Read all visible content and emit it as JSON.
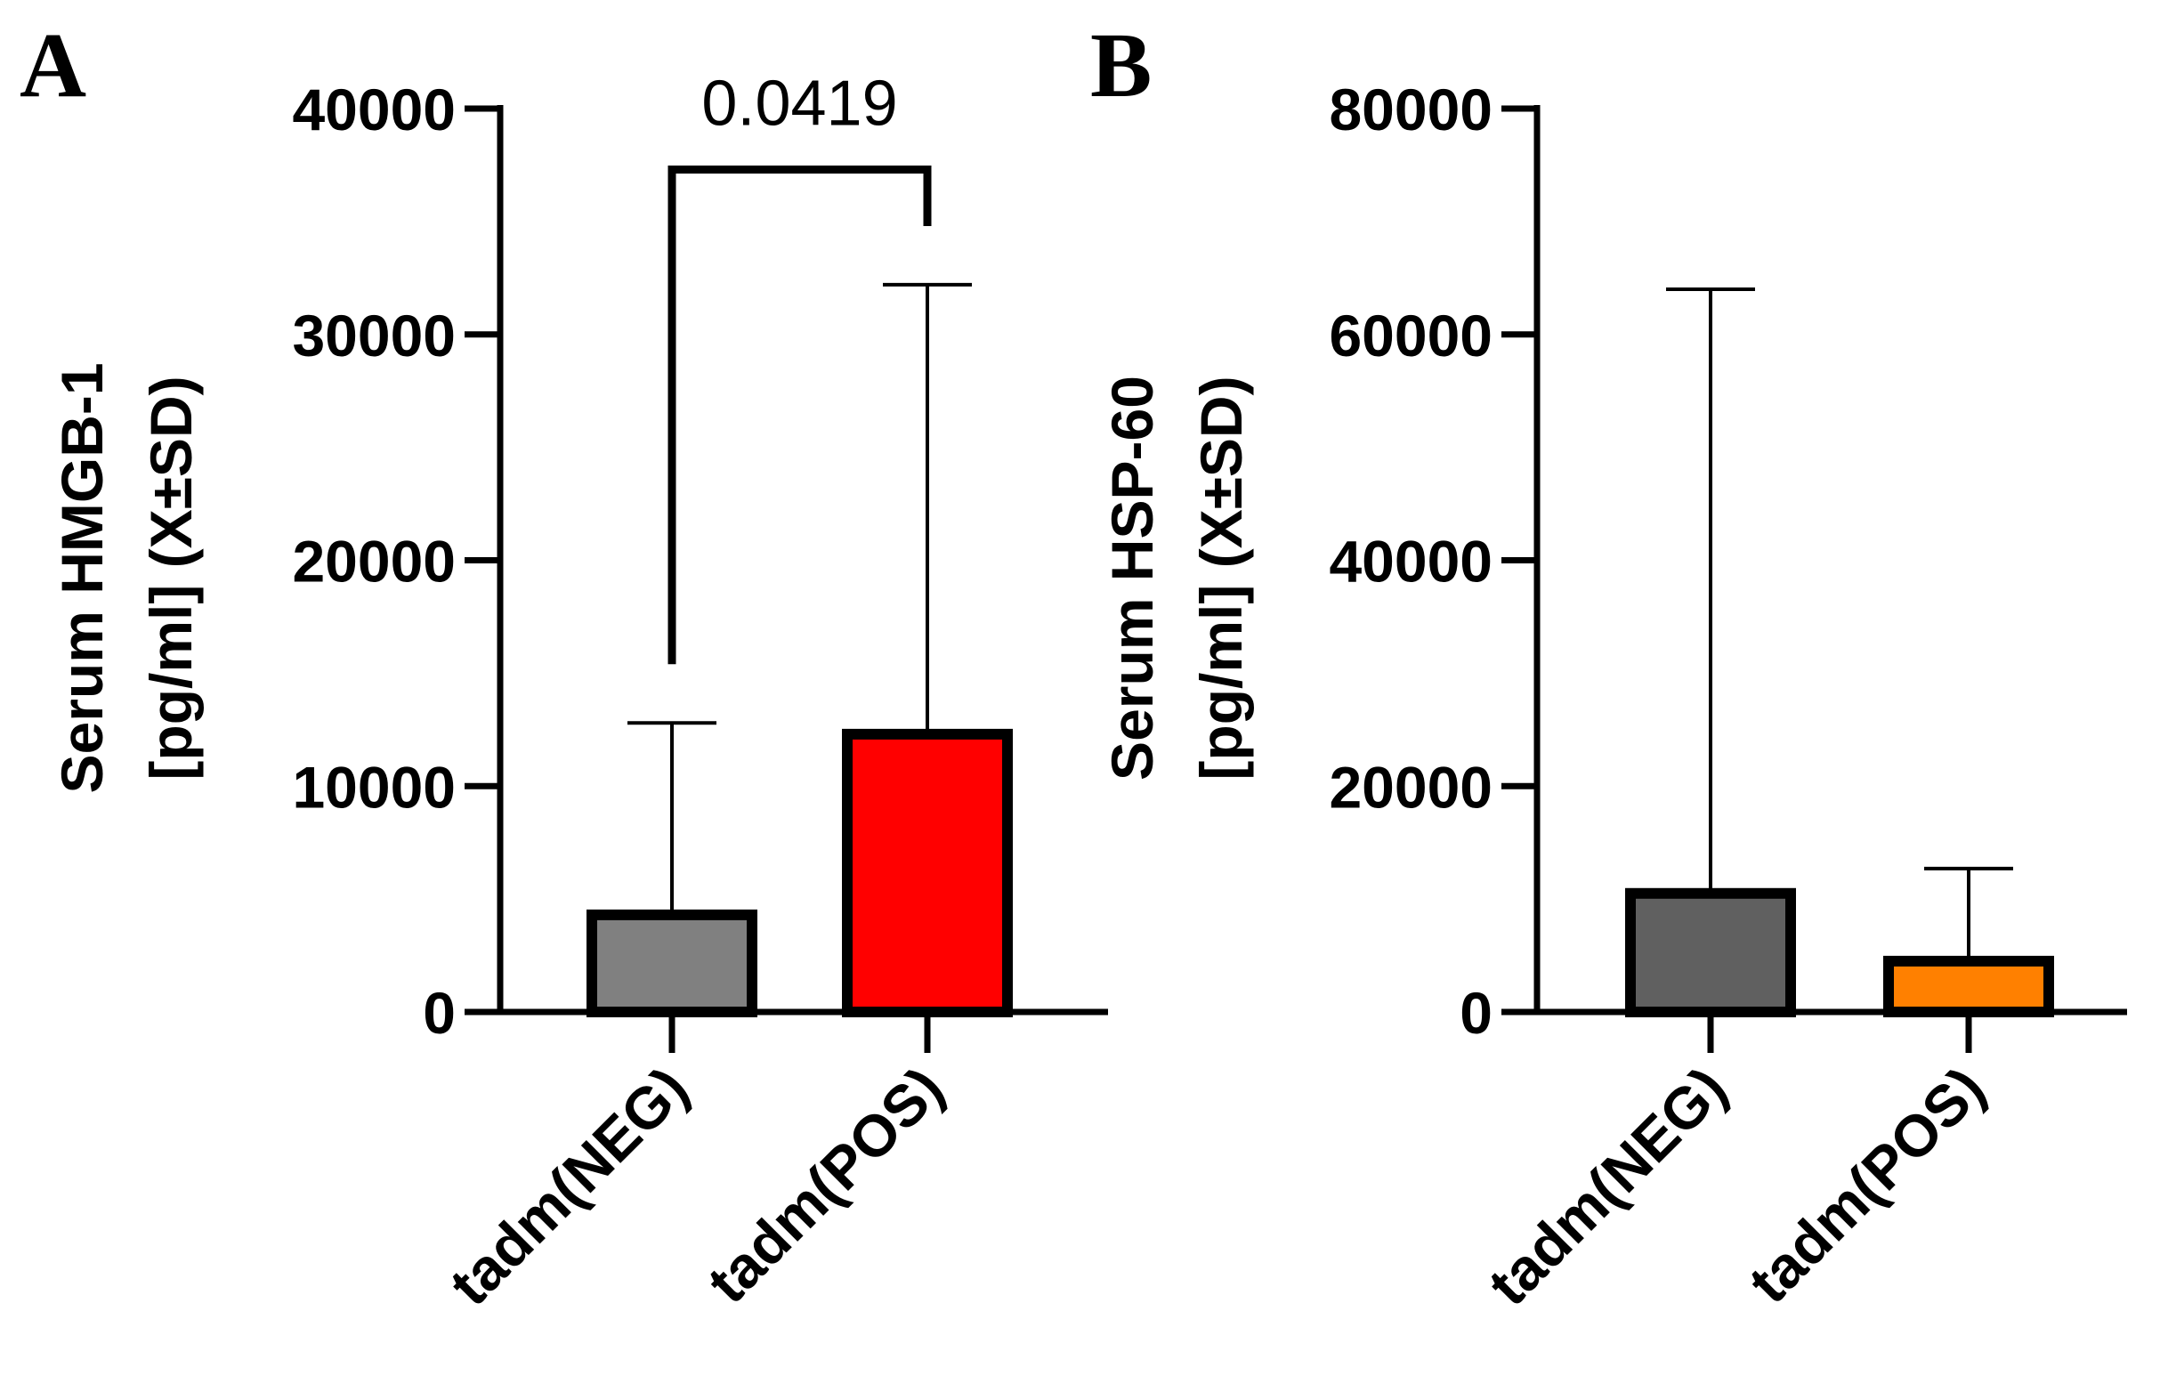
{
  "chart_data": [
    {
      "panel": "A",
      "type": "bar",
      "ylabel_lines": [
        "Serum HMGB-1",
        "[pg/ml] (X±SD)"
      ],
      "ylim": [
        0,
        40000
      ],
      "yticks": [
        0,
        10000,
        20000,
        30000,
        40000
      ],
      "categories": [
        "tadm(NEG)",
        "tadm(POS)"
      ],
      "values": [
        4300,
        12300
      ],
      "errors": [
        8500,
        19900
      ],
      "bar_colors": [
        "#808080",
        "#ff0000"
      ],
      "annotation": {
        "text": "0.0419",
        "between": [
          0,
          1
        ]
      }
    },
    {
      "panel": "B",
      "type": "bar",
      "ylabel_lines": [
        "Serum HSP-60",
        "[pg/ml] (X±SD)"
      ],
      "ylim": [
        0,
        80000
      ],
      "yticks": [
        0,
        20000,
        40000,
        60000,
        80000
      ],
      "categories": [
        "tadm(NEG)",
        "tadm(POS)"
      ],
      "values": [
        10500,
        4500
      ],
      "errors": [
        53500,
        8200
      ],
      "bar_colors": [
        "#606060",
        "#ff8000"
      ]
    }
  ]
}
